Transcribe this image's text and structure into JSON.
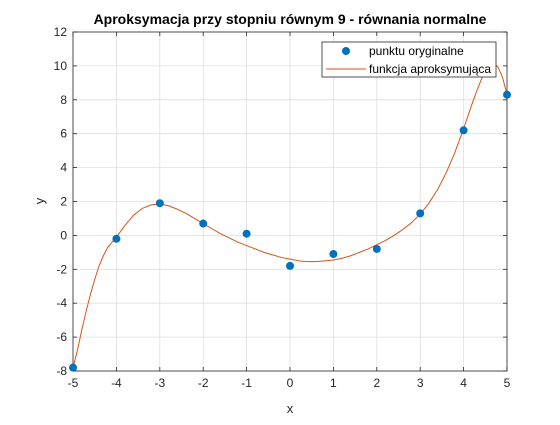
{
  "chart_data": {
    "type": "line",
    "title": "Aproksymacja przy stopniu równym 9 - równania normalne",
    "xlabel": "x",
    "ylabel": "y",
    "xlim": [
      -5,
      5
    ],
    "ylim": [
      -8,
      12
    ],
    "xticks": [
      -5,
      -4,
      -3,
      -2,
      -1,
      0,
      1,
      2,
      3,
      4,
      5
    ],
    "yticks": [
      -8,
      -6,
      -4,
      -2,
      0,
      2,
      4,
      6,
      8,
      10,
      12
    ],
    "grid": true,
    "legend_position": "top-right",
    "series": [
      {
        "name": "punktu oryginalne",
        "kind": "scatter",
        "color": "#0072BD",
        "x": [
          -5,
          -4,
          -3,
          -2,
          -1,
          0,
          1,
          2,
          3,
          4,
          5
        ],
        "y": [
          -7.8,
          -0.2,
          1.9,
          0.7,
          0.1,
          -1.8,
          -1.1,
          -0.8,
          1.3,
          6.2,
          8.3
        ]
      },
      {
        "name": "funkcja aproksymująca",
        "kind": "line",
        "color": "#D95319",
        "x": [
          -5,
          -4.9,
          -4.8,
          -4.7,
          -4.6,
          -4.5,
          -4.4,
          -4.3,
          -4.2,
          -4.1,
          -4,
          -3.8,
          -3.6,
          -3.4,
          -3.2,
          -3,
          -2.8,
          -2.6,
          -2.4,
          -2.2,
          -2,
          -1.8,
          -1.6,
          -1.4,
          -1.2,
          -1,
          -0.8,
          -0.6,
          -0.4,
          -0.2,
          0,
          0.2,
          0.4,
          0.6,
          0.8,
          1,
          1.2,
          1.4,
          1.6,
          1.8,
          2,
          2.2,
          2.4,
          2.6,
          2.8,
          3,
          3.2,
          3.4,
          3.6,
          3.8,
          4,
          4.1,
          4.2,
          4.3,
          4.4,
          4.5,
          4.6,
          4.7,
          4.8,
          4.9,
          5
        ],
        "y": [
          -7.8,
          -6.8,
          -5.6,
          -4.5,
          -3.5,
          -2.6,
          -1.8,
          -1.2,
          -0.7,
          -0.4,
          -0.1,
          0.6,
          1.2,
          1.6,
          1.8,
          1.85,
          1.75,
          1.55,
          1.3,
          1.0,
          0.7,
          0.4,
          0.1,
          -0.15,
          -0.4,
          -0.6,
          -0.8,
          -1.0,
          -1.15,
          -1.3,
          -1.4,
          -1.5,
          -1.55,
          -1.55,
          -1.5,
          -1.45,
          -1.35,
          -1.2,
          -1.0,
          -0.8,
          -0.55,
          -0.3,
          0.0,
          0.35,
          0.75,
          1.25,
          1.9,
          2.7,
          3.7,
          4.9,
          6.3,
          7.05,
          7.8,
          8.5,
          9.15,
          9.7,
          10.05,
          10.15,
          9.9,
          9.3,
          8.3
        ]
      }
    ]
  }
}
